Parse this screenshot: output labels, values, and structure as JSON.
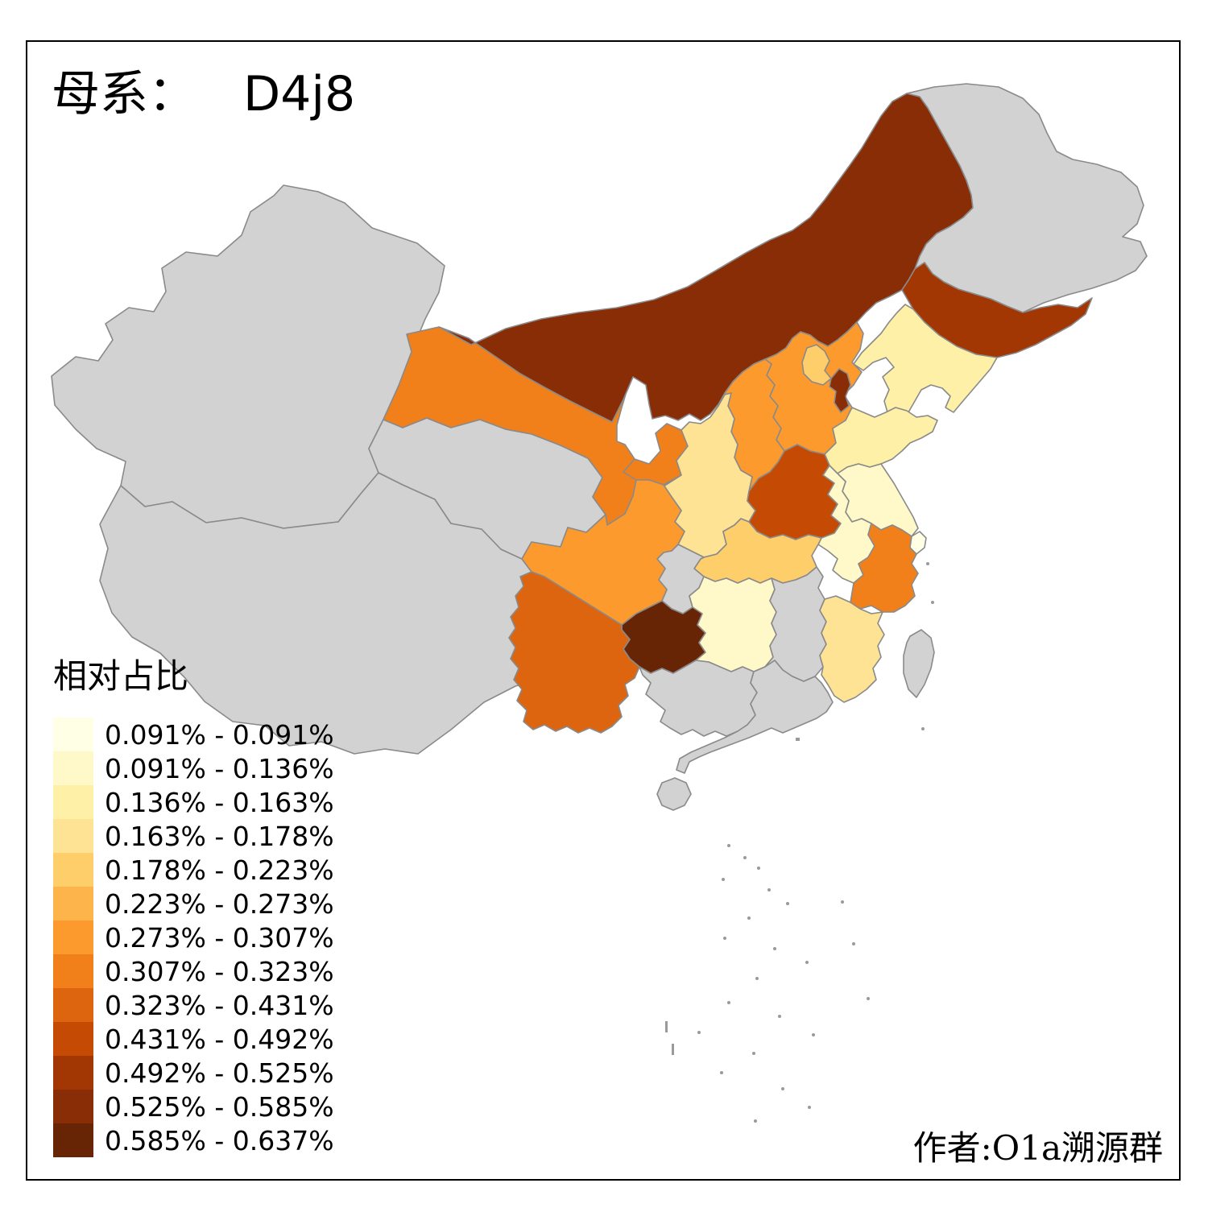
{
  "title": {
    "prefix": "母系：",
    "haplogroup": "D4j8"
  },
  "attribution": "作者:O1a溯源群",
  "legend": {
    "title": "相对占比",
    "bins": [
      {
        "label": "0.091% - 0.091%",
        "color": "#FFFFE5"
      },
      {
        "label": "0.091% - 0.136%",
        "color": "#FFF8C8"
      },
      {
        "label": "0.136% - 0.163%",
        "color": "#FEF0A6"
      },
      {
        "label": "0.163% - 0.178%",
        "color": "#FEE394"
      },
      {
        "label": "0.178% - 0.223%",
        "color": "#FECE6B"
      },
      {
        "label": "0.223% - 0.273%",
        "color": "#FDB44A"
      },
      {
        "label": "0.273% - 0.307%",
        "color": "#FC9A2E"
      },
      {
        "label": "0.307% - 0.323%",
        "color": "#F2801A"
      },
      {
        "label": "0.323% - 0.431%",
        "color": "#DD650F"
      },
      {
        "label": "0.431% - 0.492%",
        "color": "#C54A04"
      },
      {
        "label": "0.492% - 0.525%",
        "color": "#A23703"
      },
      {
        "label": "0.525% - 0.585%",
        "color": "#882D05"
      },
      {
        "label": "0.585% - 0.637%",
        "color": "#672506"
      }
    ]
  },
  "map": {
    "na_color": "#D2D2D2",
    "border_color": "#8A8A8A",
    "background": "#FFFFFF",
    "provinces": [
      {
        "id": "xinjiang",
        "name_zh": "新疆",
        "bin": null
      },
      {
        "id": "tibet",
        "name_zh": "西藏",
        "bin": null
      },
      {
        "id": "qinghai",
        "name_zh": "青海",
        "bin": null
      },
      {
        "id": "gansu",
        "name_zh": "甘肃",
        "bin": 8
      },
      {
        "id": "ningxia",
        "name_zh": "宁夏",
        "bin": null
      },
      {
        "id": "inner-mongolia",
        "name_zh": "内蒙古",
        "bin": 12
      },
      {
        "id": "heilongjiang",
        "name_zh": "黑龙江",
        "bin": null
      },
      {
        "id": "jilin",
        "name_zh": "吉林",
        "bin": 11
      },
      {
        "id": "liaoning",
        "name_zh": "辽宁",
        "bin": 3
      },
      {
        "id": "hebei",
        "name_zh": "河北",
        "bin": 7
      },
      {
        "id": "beijing",
        "name_zh": "北京",
        "bin": 5
      },
      {
        "id": "tianjin",
        "name_zh": "天津",
        "bin": 12
      },
      {
        "id": "shanxi",
        "name_zh": "山西",
        "bin": 7
      },
      {
        "id": "shaanxi",
        "name_zh": "陕西",
        "bin": 4
      },
      {
        "id": "shandong",
        "name_zh": "山东",
        "bin": 3
      },
      {
        "id": "henan",
        "name_zh": "河南",
        "bin": 10
      },
      {
        "id": "jiangsu",
        "name_zh": "江苏",
        "bin": 2
      },
      {
        "id": "anhui",
        "name_zh": "安徽",
        "bin": 2
      },
      {
        "id": "shanghai",
        "name_zh": "上海",
        "bin": 1
      },
      {
        "id": "hubei",
        "name_zh": "湖北",
        "bin": 5
      },
      {
        "id": "chongqing",
        "name_zh": "重庆",
        "bin": null
      },
      {
        "id": "sichuan",
        "name_zh": "四川",
        "bin": 7
      },
      {
        "id": "guizhou",
        "name_zh": "贵州",
        "bin": 13
      },
      {
        "id": "yunnan",
        "name_zh": "云南",
        "bin": 9
      },
      {
        "id": "hunan",
        "name_zh": "湖南",
        "bin": 2
      },
      {
        "id": "jiangxi",
        "name_zh": "江西",
        "bin": null
      },
      {
        "id": "zhejiang",
        "name_zh": "浙江",
        "bin": 8
      },
      {
        "id": "fujian",
        "name_zh": "福建",
        "bin": 4
      },
      {
        "id": "guangxi",
        "name_zh": "广西",
        "bin": null
      },
      {
        "id": "guangdong",
        "name_zh": "广东",
        "bin": null
      },
      {
        "id": "hainan",
        "name_zh": "海南",
        "bin": null
      },
      {
        "id": "taiwan",
        "name_zh": "台湾",
        "bin": null
      }
    ]
  }
}
